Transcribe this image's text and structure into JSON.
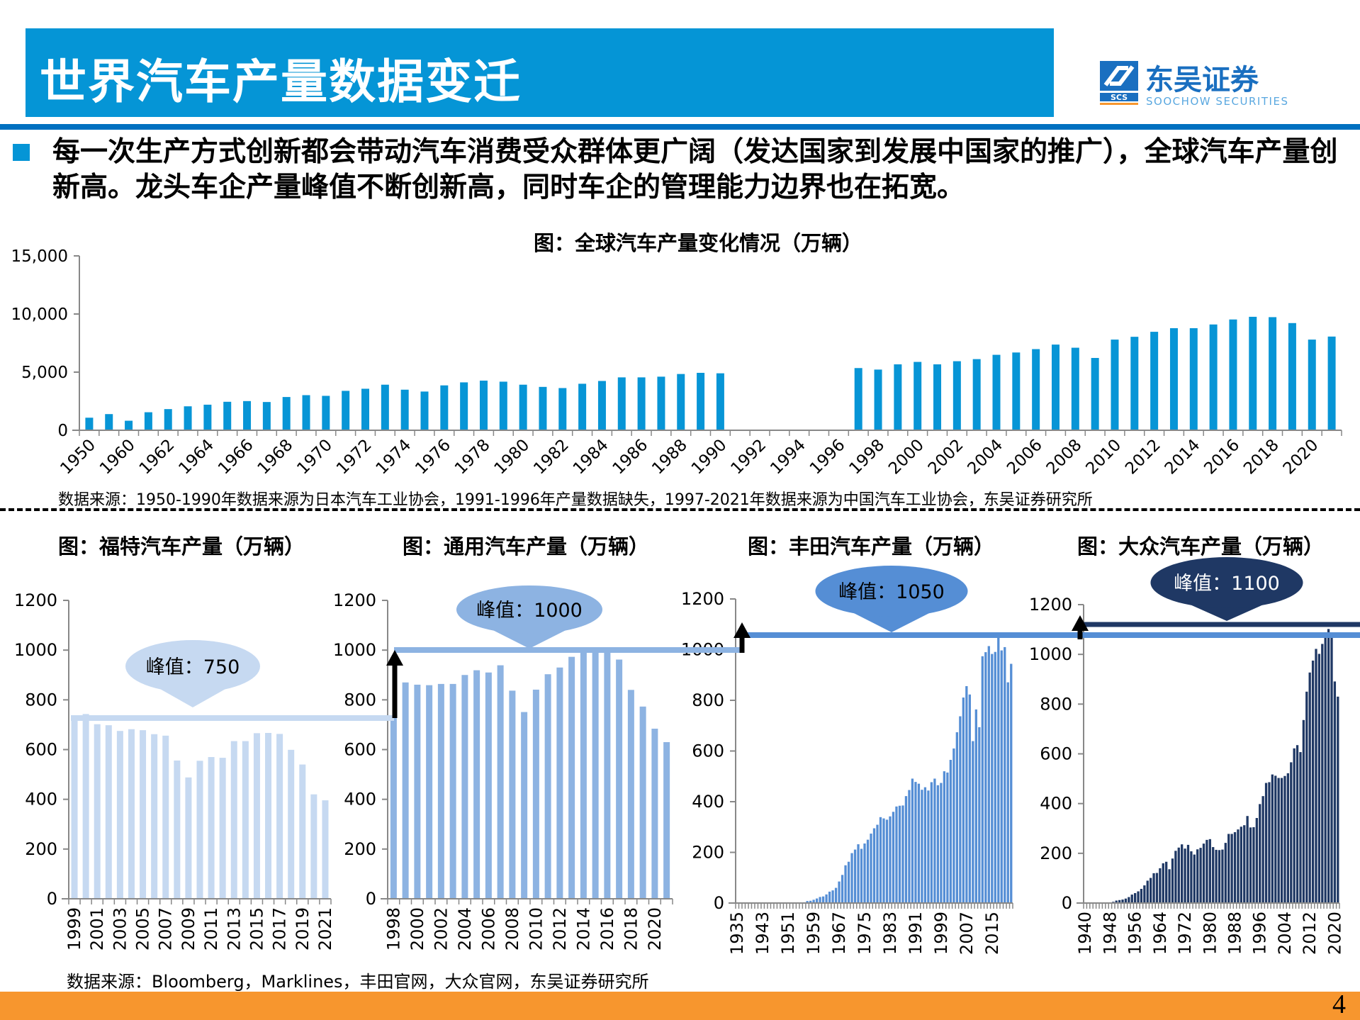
{
  "header": {
    "title": "世界汽车产量数据变迁",
    "logo_cn": "东吴证券",
    "logo_en": "SOOCHOW SECURITIES",
    "logo_mark": "SCS"
  },
  "bullet": "每一次生产方式创新都会带动汽车消费受众群体更广阔（发达国家到发展中国家的推广），全球汽车产量创新高。龙头车企产量峰值不断创新高，同时车企的管理能力边界也在拓宽。",
  "main_source": "数据来源：1950-1990年数据来源为日本汽车工业协会，1991-1996年产量数据缺失，1997-2021年数据来源为中国汽车工业协会，东吴证券研究所",
  "bottom_source": "数据来源：Bloomberg，Marklines，丰田官网，大众官网，东吴证券研究所",
  "page_number": "4",
  "colors": {
    "title_bar": "#0595d6",
    "rule": "#0070c0",
    "footer": "#f7962e",
    "main_bar": "#0795d6",
    "ford": "#c6d9f1",
    "gm": "#8db3e2",
    "toyota": "#558ed5",
    "vw": "#1f3864"
  },
  "chart_data": [
    {
      "id": "main",
      "type": "bar",
      "title": "图：全球汽车产量变化情况（万辆）",
      "ylim": [
        0,
        15000
      ],
      "yticks": [
        "0",
        "5,000",
        "10,000",
        "15,000"
      ],
      "grid": false,
      "categories": [
        "1950",
        "1955",
        "1960",
        "1961",
        "1962",
        "1963",
        "1964",
        "1965",
        "1966",
        "1967",
        "1968",
        "1969",
        "1970",
        "1971",
        "1972",
        "1973",
        "1974",
        "1975",
        "1976",
        "1977",
        "1978",
        "1979",
        "1980",
        "1981",
        "1982",
        "1983",
        "1984",
        "1985",
        "1986",
        "1987",
        "1988",
        "1989",
        "1990",
        "1991",
        "1992",
        "1993",
        "1994",
        "1995",
        "1996",
        "1997",
        "1998",
        "1999",
        "2000",
        "2001",
        "2002",
        "2003",
        "2004",
        "2005",
        "2006",
        "2007",
        "2008",
        "2009",
        "2010",
        "2011",
        "2012",
        "2013",
        "2014",
        "2015",
        "2016",
        "2017",
        "2018",
        "2019",
        "2020",
        "2021"
      ],
      "values": [
        1080,
        1390,
        820,
        1550,
        1820,
        2060,
        2200,
        2450,
        2510,
        2430,
        2860,
        3020,
        2960,
        3390,
        3570,
        3920,
        3490,
        3330,
        3860,
        4120,
        4270,
        4180,
        3920,
        3730,
        3630,
        4000,
        4240,
        4550,
        4550,
        4610,
        4840,
        4940,
        4900,
        null,
        null,
        null,
        null,
        null,
        null,
        5350,
        5220,
        5670,
        5880,
        5670,
        5940,
        6120,
        6490,
        6690,
        6980,
        7370,
        7100,
        6220,
        7800,
        8040,
        8470,
        8780,
        8780,
        9100,
        9530,
        9760,
        9730,
        9220,
        7800,
        8060
      ]
    },
    {
      "id": "ford",
      "type": "bar",
      "title": "图：福特汽车产量（万辆）",
      "ylim": [
        0,
        1200
      ],
      "yticks": [
        "0",
        "200",
        "400",
        "600",
        "800",
        "1000",
        "1200"
      ],
      "year_range": [
        1999,
        2021
      ],
      "values": [
        730,
        743,
        702,
        698,
        675,
        682,
        678,
        662,
        656,
        556,
        488,
        555,
        570,
        567,
        634,
        634,
        666,
        667,
        663,
        599,
        540,
        420,
        396
      ],
      "peak_label": "峰值：750",
      "peak": 750
    },
    {
      "id": "gm",
      "type": "bar",
      "title": "图：通用汽车产量（万辆）",
      "ylim": [
        0,
        1200
      ],
      "yticks": [
        "0",
        "200",
        "400",
        "600",
        "800",
        "1000",
        "1200"
      ],
      "year_range": [
        1998,
        2021
      ],
      "values": [
        730,
        870,
        861,
        859,
        864,
        864,
        900,
        919,
        910,
        939,
        837,
        751,
        841,
        903,
        930,
        973,
        993,
        1000,
        1000,
        962,
        840,
        773,
        684,
        630
      ],
      "peak_label": "峰值：1000",
      "peak": 1000
    },
    {
      "id": "toyota",
      "type": "bar",
      "title": "图：丰田汽车产量（万辆）",
      "ylim": [
        0,
        1200
      ],
      "yticks": [
        "0",
        "200",
        "400",
        "600",
        "800",
        "1000",
        "1200"
      ],
      "year_range": [
        1935,
        2021
      ],
      "values": [
        0,
        0,
        1,
        1,
        1,
        1,
        1,
        1,
        1,
        0,
        0,
        0,
        1,
        1,
        1,
        1,
        1,
        1,
        2,
        2,
        2,
        3,
        8,
        9,
        13,
        18,
        24,
        26,
        34,
        45,
        50,
        60,
        85,
        111,
        149,
        163,
        197,
        211,
        232,
        214,
        235,
        250,
        274,
        295,
        309,
        339,
        334,
        329,
        342,
        360,
        381,
        384,
        385,
        422,
        446,
        491,
        478,
        471,
        447,
        457,
        444,
        477,
        491,
        465,
        474,
        520,
        515,
        565,
        610,
        674,
        737,
        811,
        856,
        823,
        639,
        764,
        694,
        974,
        990,
        1014,
        983,
        991,
        1047,
        997,
        1010,
        871,
        944
      ],
      "peak_label": "峰值：1050",
      "peak": 1050
    },
    {
      "id": "vw",
      "type": "bar",
      "title": "图：大众汽车产量（万辆）",
      "ylim": [
        0,
        1200
      ],
      "yticks": [
        "0",
        "200",
        "400",
        "600",
        "800",
        "1000",
        "1200"
      ],
      "year_range": [
        1940,
        2021
      ],
      "values": [
        1,
        1,
        2,
        2,
        1,
        1,
        1,
        1,
        2,
        5,
        10,
        12,
        14,
        18,
        24,
        34,
        40,
        47,
        57,
        71,
        90,
        101,
        120,
        121,
        140,
        160,
        166,
        136,
        179,
        210,
        223,
        236,
        219,
        234,
        208,
        195,
        216,
        222,
        239,
        254,
        257,
        225,
        214,
        213,
        215,
        242,
        278,
        278,
        285,
        296,
        307,
        313,
        350,
        304,
        305,
        342,
        398,
        430,
        483,
        486,
        517,
        512,
        503,
        503,
        511,
        522,
        566,
        622,
        635,
        607,
        736,
        850,
        927,
        975,
        1022,
        1002,
        1042,
        1089,
        1102,
        1083,
        891,
        830
      ],
      "peak_label": "峰值：1100",
      "peak": 1100
    }
  ]
}
